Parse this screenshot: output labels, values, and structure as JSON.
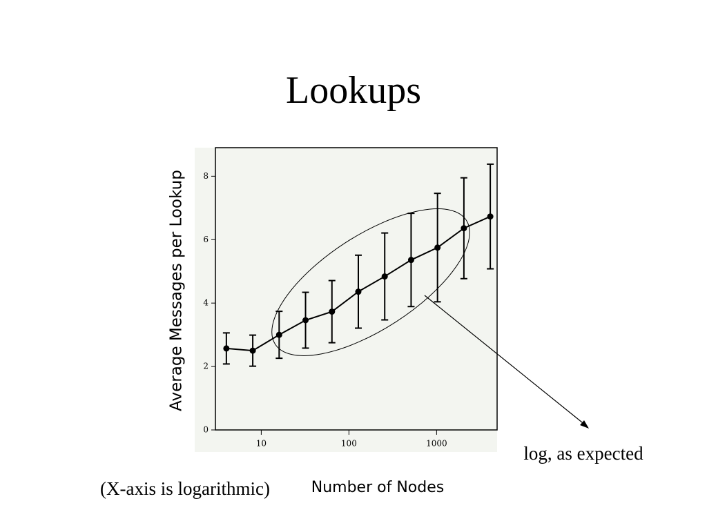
{
  "chart_data": {
    "type": "line",
    "title": "Lookups",
    "x_label": "Number of Nodes",
    "y_label": "Average Messages per Lookup",
    "x_scale": "log",
    "x": [
      4,
      8,
      16,
      32,
      64,
      128,
      256,
      512,
      1024,
      2048,
      4096
    ],
    "series": [
      {
        "color": "#000000",
        "values": [
          2.57,
          2.5,
          3.0,
          3.46,
          3.73,
          4.36,
          4.84,
          5.36,
          5.75,
          6.36,
          6.73
        ],
        "errors": [
          0.49,
          0.49,
          0.74,
          0.88,
          0.98,
          1.15,
          1.37,
          1.47,
          1.71,
          1.59,
          1.65
        ]
      }
    ],
    "xlim": [
      3,
      4900
    ],
    "ylim": [
      0,
      8.9
    ],
    "xticks": [
      10,
      100,
      1000
    ],
    "yticks": [
      0,
      2,
      4,
      6,
      8
    ],
    "annotations": [
      "log, as expected",
      "(X-axis is logarithmic)"
    ]
  }
}
